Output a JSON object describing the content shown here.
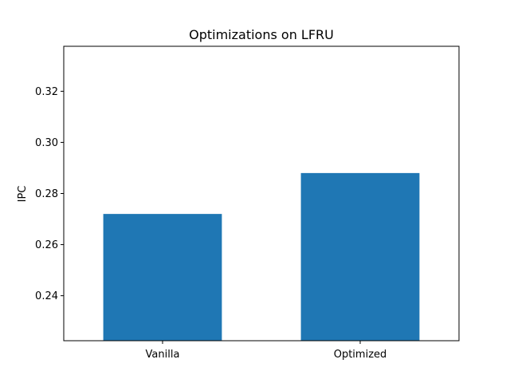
{
  "chart_data": {
    "type": "bar",
    "title": "Optimizations on LFRU",
    "xlabel": "",
    "ylabel": "IPC",
    "categories": [
      "Vanilla",
      "Optimized"
    ],
    "values": [
      0.272,
      0.288
    ],
    "ylim": [
      0.2224,
      0.3376
    ],
    "yticks": [
      "0.24",
      "0.26",
      "0.28",
      "0.30",
      "0.32"
    ],
    "bar_color": "#1f77b4",
    "grid": false
  }
}
